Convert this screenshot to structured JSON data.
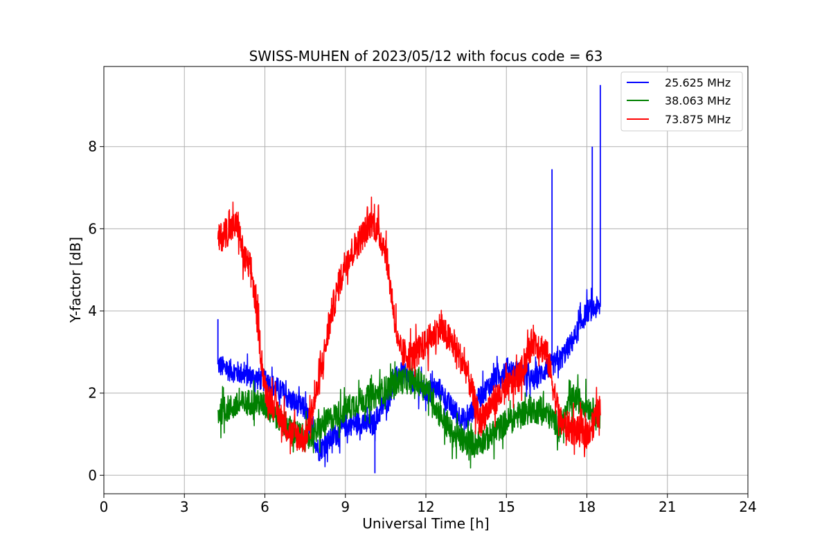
{
  "chart_data": {
    "type": "line",
    "title": "SWISS-MUHEN of 2023/05/12 with focus code = 63",
    "xlabel": "Universal Time [h]",
    "ylabel": "Y-factor [dB]",
    "xlim": [
      0,
      24
    ],
    "ylim": [
      -0.45,
      9.95
    ],
    "xticks": [
      0,
      3,
      6,
      9,
      12,
      15,
      18,
      21,
      24
    ],
    "yticks": [
      0,
      2,
      4,
      6,
      8
    ],
    "grid": true,
    "legend_position": "top-right",
    "series": [
      {
        "name": "25.625 MHz",
        "color": "#0000ff",
        "x": [
          4.25,
          4.5,
          5.0,
          5.5,
          6.0,
          6.5,
          7.0,
          7.5,
          8.0,
          8.5,
          9.0,
          9.5,
          10.0,
          10.5,
          11.0,
          11.5,
          12.0,
          12.5,
          13.0,
          13.5,
          14.0,
          14.5,
          15.0,
          15.5,
          16.0,
          16.5,
          17.0,
          17.5,
          18.0,
          18.5
        ],
        "y": [
          2.7,
          2.6,
          2.5,
          2.4,
          2.3,
          2.1,
          1.8,
          1.6,
          0.6,
          0.9,
          1.2,
          1.3,
          1.2,
          1.8,
          2.5,
          2.3,
          2.0,
          2.1,
          1.6,
          1.3,
          1.9,
          2.3,
          2.6,
          2.5,
          2.3,
          2.6,
          2.8,
          3.3,
          4.0,
          4.1
        ],
        "spikes": [
          [
            4.25,
            3.8
          ],
          [
            16.7,
            7.45
          ],
          [
            18.2,
            8.0
          ],
          [
            18.5,
            9.5
          ],
          [
            10.1,
            0.05
          ]
        ]
      },
      {
        "name": "38.063 MHz",
        "color": "#008000",
        "x": [
          4.25,
          4.5,
          5.0,
          5.5,
          6.0,
          6.5,
          7.0,
          7.5,
          8.0,
          8.5,
          9.0,
          9.5,
          10.0,
          10.5,
          11.0,
          11.5,
          12.0,
          12.5,
          13.0,
          13.5,
          14.0,
          14.5,
          15.0,
          15.5,
          16.0,
          16.5,
          17.0,
          17.5,
          18.0,
          18.5
        ],
        "y": [
          1.5,
          1.6,
          1.7,
          1.8,
          1.7,
          1.4,
          1.1,
          0.9,
          1.1,
          1.4,
          1.6,
          1.8,
          1.9,
          2.1,
          2.3,
          2.3,
          2.2,
          1.5,
          1.0,
          0.8,
          0.8,
          1.0,
          1.3,
          1.5,
          1.6,
          1.5,
          1.2,
          1.9,
          1.7,
          1.4
        ]
      },
      {
        "name": "73.875 MHz",
        "color": "#ff0000",
        "x": [
          4.25,
          4.5,
          5.0,
          5.2,
          5.5,
          5.8,
          6.0,
          6.5,
          7.0,
          7.5,
          8.0,
          8.5,
          9.0,
          9.5,
          10.0,
          10.5,
          11.0,
          11.5,
          12.0,
          12.5,
          13.0,
          13.5,
          14.0,
          14.5,
          15.0,
          15.5,
          16.0,
          16.5,
          17.0,
          17.5,
          18.0,
          18.5
        ],
        "y": [
          5.7,
          5.9,
          6.1,
          5.3,
          5.0,
          3.3,
          2.1,
          1.5,
          1.0,
          0.9,
          2.2,
          4.0,
          5.2,
          5.7,
          6.2,
          5.5,
          3.0,
          2.9,
          3.2,
          3.6,
          3.2,
          2.6,
          1.3,
          1.8,
          2.1,
          2.4,
          3.3,
          3.0,
          1.3,
          1.1,
          1.0,
          1.6
        ]
      }
    ]
  }
}
